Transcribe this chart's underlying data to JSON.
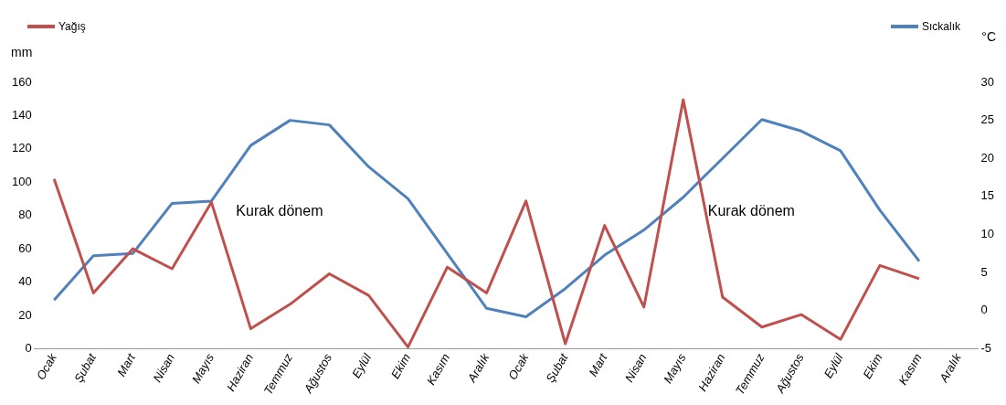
{
  "chart_data": {
    "type": "line",
    "ylabel": "mm",
    "y2label": "°C",
    "categories": [
      "Ocak",
      "Şubat",
      "Mart",
      "Nisan",
      "Mayıs",
      "Haziran",
      "Temmuz",
      "Ağustos",
      "Eylül",
      "Ekim",
      "Kasım",
      "Aralık",
      "Ocak",
      "Şubat",
      "Mart",
      "Nisan",
      "Mayıs",
      "Haziran",
      "Temmuz",
      "Ağustos",
      "Eylül",
      "Ekim",
      "Kasım",
      "Aralık"
    ],
    "series": [
      {
        "name": "Yağış",
        "color": "#c0504d",
        "values": [
          102,
          33.5,
          60,
          48,
          88,
          12,
          26.7,
          45,
          32,
          1,
          49,
          33.5,
          88.7,
          3,
          74,
          25,
          149.5,
          31,
          13,
          20.5,
          5.6,
          50,
          42,
          null
        ]
      },
      {
        "name": "Sıckalık",
        "color": "#4f81bd",
        "axis": "y2",
        "values": [
          1.4,
          7.2,
          7.5,
          14.1,
          14.4,
          21.7,
          25,
          24.4,
          18.9,
          14.7,
          7.5,
          0.3,
          -0.8,
          2.9,
          7.3,
          10.6,
          14.9,
          20,
          25.1,
          23.6,
          21,
          13.2,
          6.5,
          null
        ]
      }
    ],
    "ylim": [
      0,
      160
    ],
    "yticks": [
      0,
      20,
      40,
      60,
      80,
      100,
      120,
      140,
      160
    ],
    "y2lim": [
      -5,
      30
    ],
    "y2ticks": [
      -5,
      0,
      5,
      10,
      15,
      20,
      25,
      30
    ],
    "annotations": [
      "Kurak dönem",
      "Kurak dönem"
    ],
    "legend": "top",
    "grid": false,
    "marker": "none",
    "line_style": "solid"
  }
}
